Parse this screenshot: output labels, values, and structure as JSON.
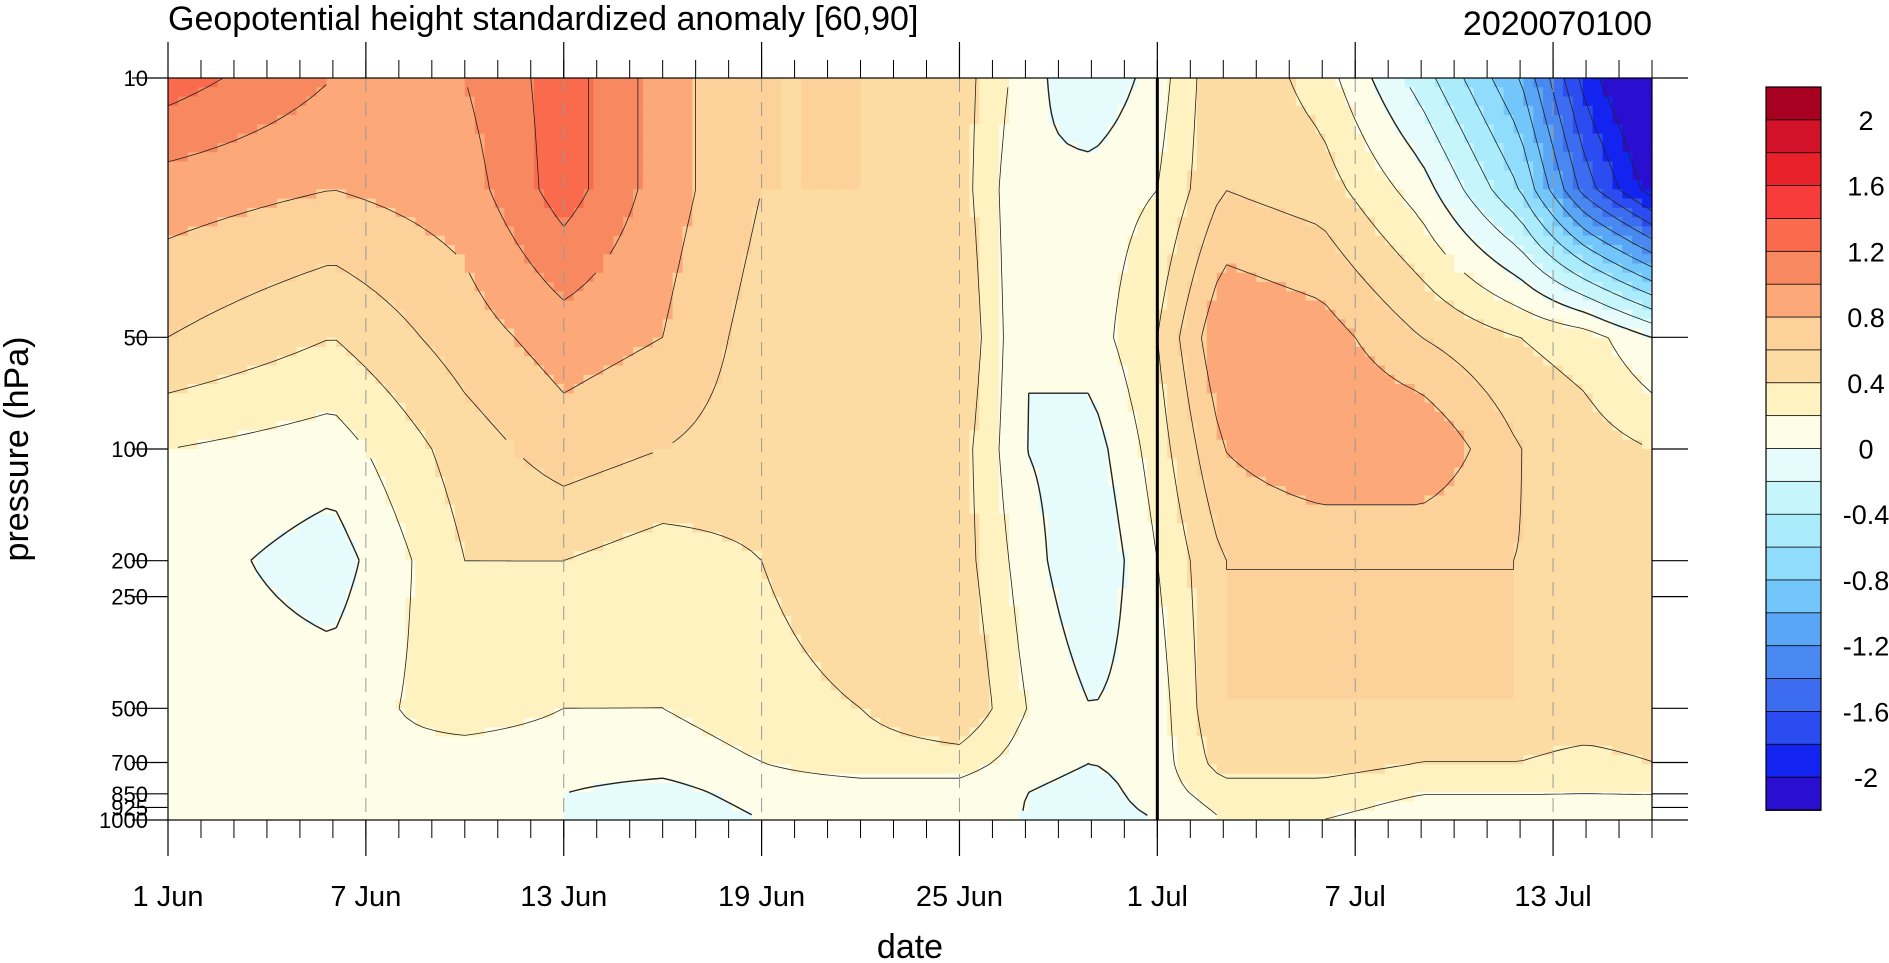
{
  "chart_data": {
    "type": "heatmap",
    "title": "Geopotential height standardized anomaly [60,90]",
    "title_right": "2020070100",
    "xlabel": "date",
    "ylabel": "pressure (hPa)",
    "y_scale": "log",
    "y_reversed": true,
    "ylim": [
      1000,
      10
    ],
    "xlim": [
      "2020-06-01",
      "2020-07-16"
    ],
    "x_ticks": [
      {
        "date": "2020-06-01",
        "label": "1 Jun"
      },
      {
        "date": "2020-06-07",
        "label": "7 Jun"
      },
      {
        "date": "2020-06-13",
        "label": "13 Jun"
      },
      {
        "date": "2020-06-19",
        "label": "19 Jun"
      },
      {
        "date": "2020-06-25",
        "label": "25 Jun"
      },
      {
        "date": "2020-07-01",
        "label": "1 Jul"
      },
      {
        "date": "2020-07-07",
        "label": "7 Jul"
      },
      {
        "date": "2020-07-13",
        "label": "13 Jul"
      }
    ],
    "y_ticks": [
      {
        "value": 10,
        "label": "10"
      },
      {
        "value": 50,
        "label": "50"
      },
      {
        "value": 100,
        "label": "100"
      },
      {
        "value": 200,
        "label": "200"
      },
      {
        "value": 250,
        "label": "250"
      },
      {
        "value": 500,
        "label": "500"
      },
      {
        "value": 700,
        "label": "700"
      },
      {
        "value": 850,
        "label": "850"
      },
      {
        "value": 925,
        "label": "925"
      },
      {
        "value": 1000,
        "label": "1000"
      }
    ],
    "analysis_date_line": "2020-07-01",
    "colorbar": {
      "levels": [
        -2.2,
        -2.0,
        -1.8,
        -1.6,
        -1.4,
        -1.2,
        -1.0,
        -0.8,
        -0.6,
        -0.4,
        -0.2,
        0.0,
        0.2,
        0.4,
        0.6,
        0.8,
        1.0,
        1.2,
        1.4,
        1.6,
        1.8,
        2.0,
        2.2
      ],
      "colors": [
        "#2a0fd0",
        "#1424f0",
        "#2a4cf0",
        "#3c6cf0",
        "#4888f0",
        "#58a6f5",
        "#72c6fa",
        "#90dcfc",
        "#aaecfc",
        "#c6f6fc",
        "#e6fcfc",
        "#fefde8",
        "#fdf2c0",
        "#fddca4",
        "#fdd29a",
        "#fca878",
        "#f88860",
        "#fa6a4c",
        "#f83c3c",
        "#e82228",
        "#d21228",
        "#a80020"
      ],
      "labels": [
        {
          "value": 2,
          "text": "2"
        },
        {
          "value": 1.6,
          "text": "1.6"
        },
        {
          "value": 1.2,
          "text": "1.2"
        },
        {
          "value": 0.8,
          "text": "0.8"
        },
        {
          "value": 0.4,
          "text": "0.4"
        },
        {
          "value": 0,
          "text": "0"
        },
        {
          "value": -0.4,
          "text": "-0.4"
        },
        {
          "value": -0.8,
          "text": "-0.8"
        },
        {
          "value": -1.2,
          "text": "-1.2"
        },
        {
          "value": -1.6,
          "text": "-1.6"
        },
        {
          "value": -2,
          "text": "-2"
        }
      ]
    },
    "grid": {
      "days": [
        0,
        5,
        9,
        12,
        15,
        18,
        21,
        24,
        26,
        28,
        30,
        32,
        35,
        38,
        41,
        43,
        45
      ],
      "pressures": [
        10,
        20,
        50,
        100,
        200,
        500,
        700,
        850,
        1000
      ],
      "values": [
        [
          1.3,
          1.0,
          1.0,
          1.3,
          0.9,
          0.6,
          0.6,
          0.5,
          0.1,
          -0.2,
          0.1,
          0.6,
          0.3,
          -0.3,
          -1.0,
          -1.9,
          -2.4
        ],
        [
          0.9,
          0.8,
          0.9,
          1.3,
          0.9,
          0.6,
          0.6,
          0.5,
          0.0,
          0.1,
          0.2,
          0.6,
          0.5,
          0.1,
          -0.6,
          -1.5,
          -2.1
        ],
        [
          0.6,
          0.4,
          0.7,
          0.9,
          0.8,
          0.5,
          0.6,
          0.6,
          0.0,
          0.1,
          0.4,
          1.0,
          0.9,
          0.6,
          0.4,
          0.3,
          0.0
        ],
        [
          0.2,
          0.1,
          0.5,
          0.7,
          0.6,
          0.5,
          0.6,
          0.5,
          0.0,
          -0.1,
          0.3,
          0.8,
          1.0,
          1.0,
          0.6,
          0.5,
          0.4
        ],
        [
          0.1,
          -0.1,
          0.4,
          0.4,
          0.3,
          0.4,
          0.6,
          0.5,
          0.1,
          -0.2,
          0.2,
          0.6,
          0.6,
          0.6,
          0.6,
          0.5,
          0.6
        ],
        [
          0.1,
          0.1,
          0.3,
          0.2,
          0.2,
          0.3,
          0.4,
          0.6,
          0.2,
          0.0,
          0.1,
          0.6,
          0.6,
          0.6,
          0.6,
          0.6,
          0.6
        ],
        [
          0.1,
          0.2,
          0.1,
          0.1,
          0.1,
          0.2,
          0.3,
          0.3,
          0.1,
          0.0,
          0.1,
          0.5,
          0.5,
          0.4,
          0.4,
          0.3,
          0.4
        ],
        [
          0.1,
          0.2,
          0.0,
          0.0,
          -0.1,
          0.1,
          0.1,
          0.1,
          0.0,
          -0.1,
          0.1,
          0.3,
          0.3,
          0.2,
          0.2,
          0.2,
          0.2
        ],
        [
          0.1,
          0.1,
          0.0,
          0.0,
          -0.2,
          0.0,
          0.0,
          0.0,
          0.0,
          -0.1,
          0.0,
          0.2,
          0.2,
          0.1,
          0.1,
          0.1,
          0.1
        ]
      ]
    }
  }
}
